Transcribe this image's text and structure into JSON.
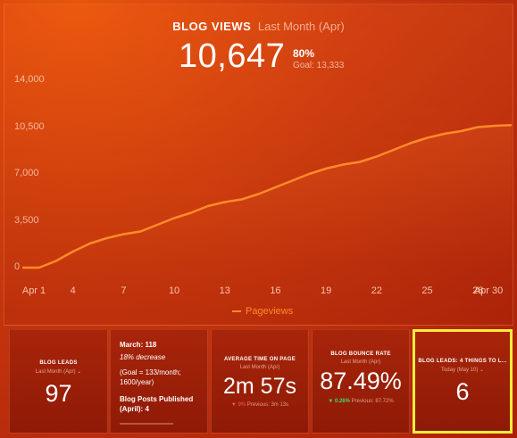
{
  "header": {
    "title": "BLOG VIEWS",
    "period": "Last Month (Apr)",
    "value": "10,647",
    "percent": "80%",
    "goal": "Goal: 13,333"
  },
  "chart_data": {
    "type": "area",
    "xlabel": "",
    "ylabel": "",
    "ylim": [
      0,
      14000
    ],
    "yticks": [
      "14,000",
      "10,500",
      "7,000",
      "3,500",
      "0"
    ],
    "xticks": [
      "Apr 1",
      "4",
      "7",
      "10",
      "13",
      "16",
      "19",
      "22",
      "25",
      "28",
      "Apr 30"
    ],
    "series": [
      {
        "name": "Pageviews",
        "x": [
          1,
          2,
          3,
          4,
          5,
          6,
          7,
          8,
          9,
          10,
          11,
          12,
          13,
          14,
          15,
          16,
          17,
          18,
          19,
          20,
          21,
          22,
          23,
          24,
          25,
          26,
          27,
          28,
          29,
          30
        ],
        "values": [
          0,
          0,
          500,
          1200,
          1800,
          2200,
          2500,
          2700,
          3200,
          3700,
          4100,
          4600,
          4900,
          5100,
          5500,
          6000,
          6500,
          7000,
          7400,
          7700,
          7900,
          8300,
          8800,
          9300,
          9700,
          10000,
          10200,
          10500,
          10600,
          10647
        ]
      }
    ],
    "grid": false,
    "legend": "bottom-center",
    "line_color": "#ff8a2a"
  },
  "cards": [
    {
      "title": "BLOG LEADS",
      "period": "Last Month (Apr)",
      "value": "97"
    },
    {
      "line1": "March: 118",
      "line2": "18% decrease",
      "line3": "(Goal = 133/month; 1600/year)",
      "line4": "Blog Posts Published (April): 4"
    },
    {
      "title": "AVERAGE TIME ON PAGE",
      "period": "Last Month (Apr)",
      "value": "2m 57s",
      "delta": "9%",
      "previous": "Previous: 3m 13s"
    },
    {
      "title": "BLOG BOUNCE RATE",
      "period": "Last Month (Apr)",
      "value": "87.49%",
      "delta": "0.26%",
      "previous": "Previous: 87.72%"
    },
    {
      "title": "BLOG LEADS: 4 THINGS TO L...",
      "period": "Today (May 10)",
      "value": "6"
    }
  ],
  "colors": {
    "accent_line": "#ff8a2a",
    "highlight_border": "#ffec3d",
    "down_red": "#ff5a4a",
    "down_green": "#3ddc6a"
  }
}
